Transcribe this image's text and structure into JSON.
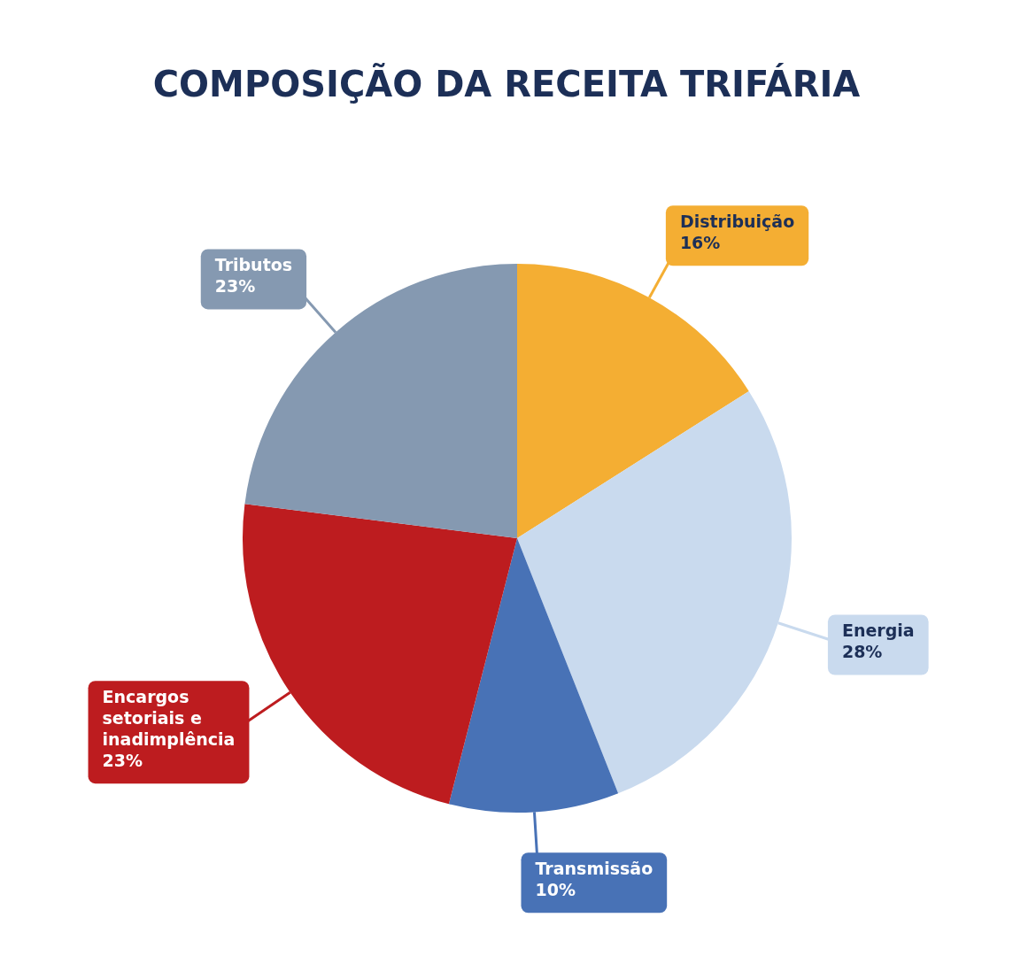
{
  "chart_data": {
    "type": "pie",
    "title": "COMPOSIÇÃO DA RECEITA TRIFÁRIA",
    "categories": [
      "Distribuição",
      "Energia",
      "Transmissão",
      "Encargos setoriais e inadimplência",
      "Tributos"
    ],
    "values": [
      16,
      28,
      10,
      23,
      23
    ],
    "colors": [
      "#f4ae33",
      "#c9daee",
      "#4872b6",
      "#bd1c1f",
      "#8599b1"
    ],
    "value_labels": [
      "16%",
      "28%",
      "10%",
      "23%",
      "23%"
    ]
  }
}
